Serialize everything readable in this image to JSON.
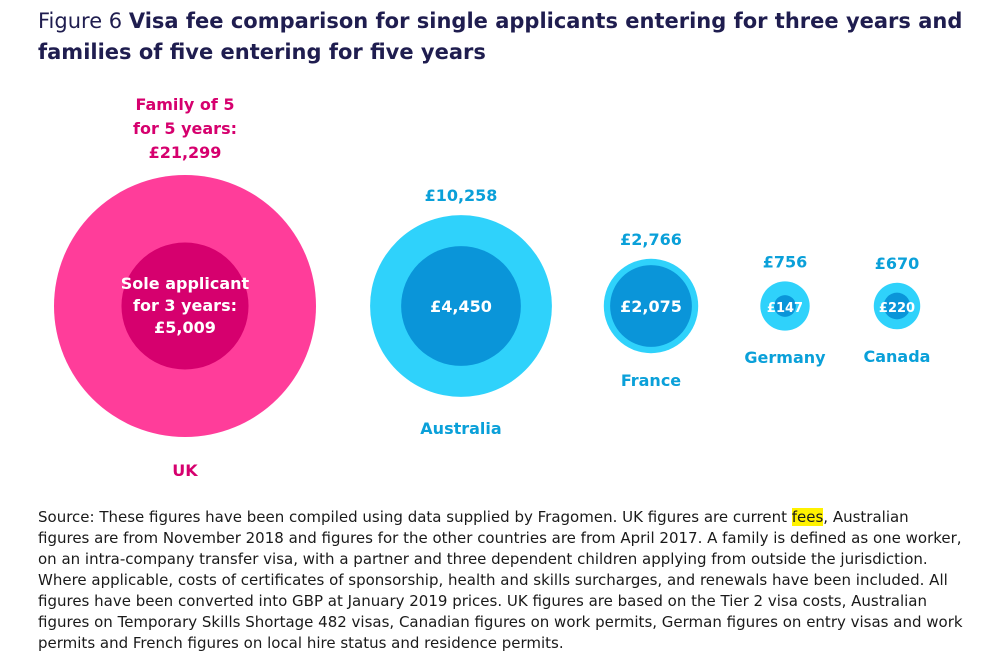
{
  "figure_label": "Figure 6",
  "title": "Visa fee comparison for single applicants entering for three years and families of five entering for five years",
  "colors": {
    "uk_family": "#ff3d9a",
    "uk_sole": "#d6006e",
    "uk_text": "#d6006e",
    "other_family": "#2fd2fb",
    "other_sole": "#0a95d9",
    "other_text": "#0aa0d9",
    "title": "#1f1d4f"
  },
  "chart_data": {
    "type": "bubble",
    "title": "Visa fee comparison for single applicants entering for three years and families of five entering for five years",
    "series": [
      {
        "name": "Family of 5 for 5 years"
      },
      {
        "name": "Sole applicant for 3 years"
      }
    ],
    "countries": [
      {
        "country": "UK",
        "family": 21299,
        "sole": 5009,
        "family_label": "£21,299",
        "sole_label": "£5,009"
      },
      {
        "country": "Australia",
        "family": 10258,
        "sole": 4450,
        "family_label": "£10,258",
        "sole_label": "£4,450"
      },
      {
        "country": "France",
        "family": 2766,
        "sole": 2075,
        "family_label": "£2,766",
        "sole_label": "£2,075"
      },
      {
        "country": "Germany",
        "family": 756,
        "sole": 147,
        "family_label": "£756",
        "sole_label": "£147"
      },
      {
        "country": "Canada",
        "family": 670,
        "sole": 220,
        "family_label": "£670",
        "sole_label": "£220"
      }
    ],
    "uk_family_caption": [
      "Family of 5",
      "for 5 years:",
      "£21,299"
    ],
    "uk_sole_caption": [
      "Sole applicant",
      "for 3 years:",
      "£5,009"
    ]
  },
  "source": {
    "before": "Source: These figures have been compiled using data supplied by Fragomen. UK figures are current ",
    "highlight": "fees",
    "after": ", Australian figures are from November 2018 and figures for the other countries are from April 2017. A family is defined as one worker, on an intra-company transfer visa, with a partner and three dependent children applying from outside the jurisdiction. Where applicable, costs of certificates of sponsorship, health and skills surcharges, and renewals have been included. All figures have been converted into GBP at January 2019 prices. UK figures are based on the Tier 2 visa costs, Australian figures on Temporary Skills Shortage 482 visas, Canadian figures on work permits, German figures on entry visas and work permits and French figures on local hire status and residence permits."
  }
}
